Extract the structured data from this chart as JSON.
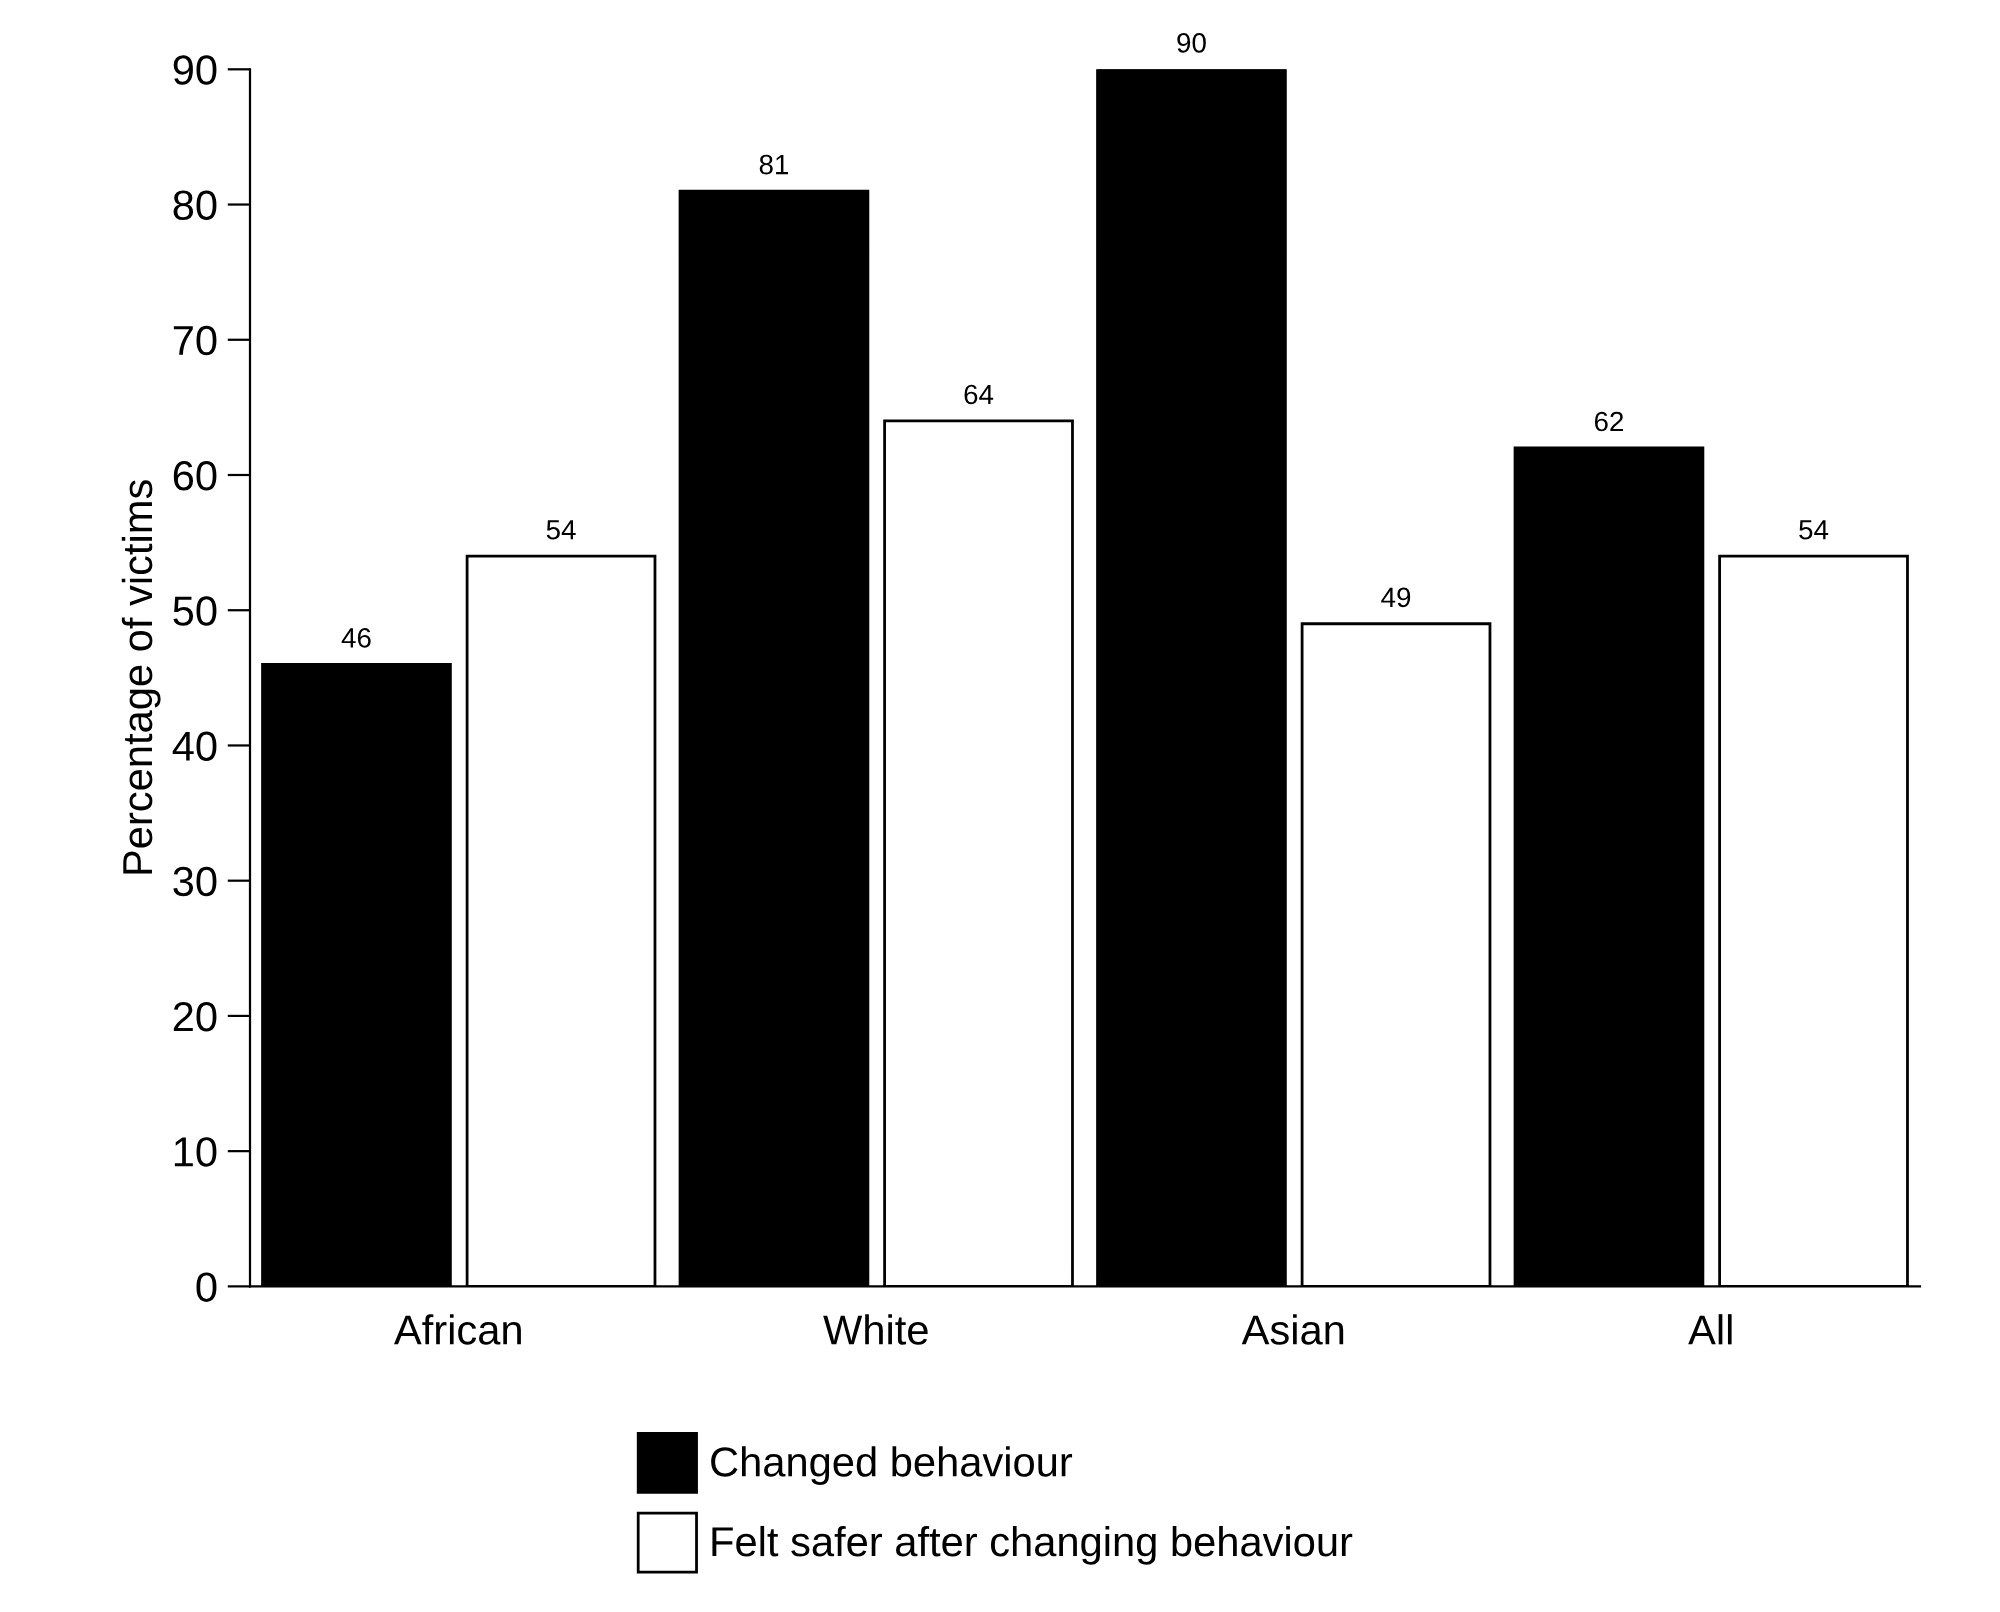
{
  "chart_data": {
    "type": "bar",
    "ylabel": "Percentage of victims",
    "categories": [
      "African",
      "White",
      "Asian",
      "All"
    ],
    "series": [
      {
        "name": "Changed behaviour",
        "color": "#000000",
        "values": [
          46,
          81,
          90,
          62
        ]
      },
      {
        "name": "Felt safer after changing behaviour",
        "color": "#ffffff",
        "values": [
          54,
          64,
          49,
          54
        ]
      }
    ],
    "ylim": [
      0,
      90
    ],
    "yticks": [
      0,
      10,
      20,
      30,
      40,
      50,
      60,
      70,
      80,
      90
    ],
    "data_labels": true,
    "legend": "bottom",
    "grid": false
  }
}
